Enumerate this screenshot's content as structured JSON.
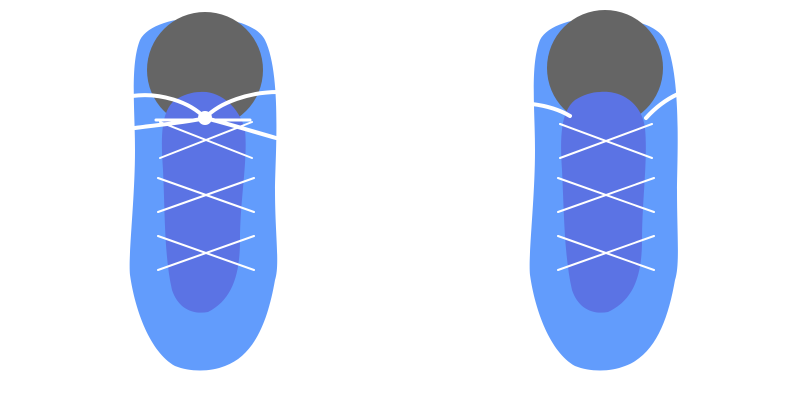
{
  "diagram": {
    "panels": [
      {
        "id": "left-shoe",
        "step": "laces-tied-across-collar"
      },
      {
        "id": "right-shoe",
        "step": "laces-ends-tucked"
      }
    ],
    "colors": {
      "background": "#ffffff",
      "shoe_body": "#629cfc",
      "tongue": "#5b73e4",
      "opening": "#656565",
      "lace": "#ffffff"
    },
    "cross_lace_pairs_per_shoe": 3
  }
}
